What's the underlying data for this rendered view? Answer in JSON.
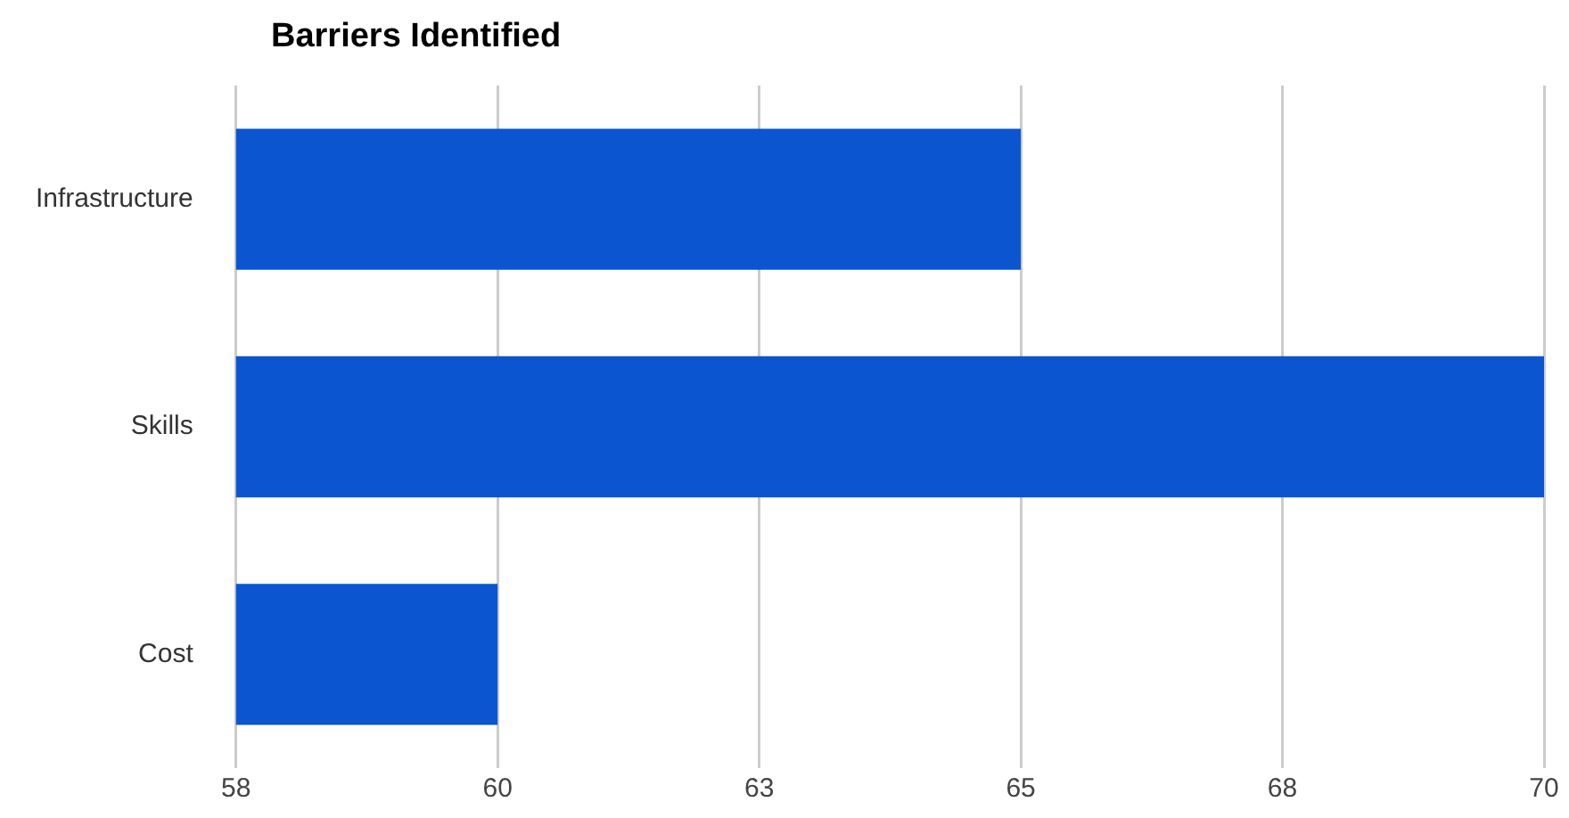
{
  "chart_data": {
    "type": "bar",
    "title": "Barriers Identified",
    "orientation": "horizontal",
    "categories": [
      "Infrastructure",
      "Skills",
      "Cost"
    ],
    "values": [
      65.2,
      70,
      60.4
    ],
    "color": "#0b55d0",
    "xlim": [
      58,
      70
    ],
    "xticks": [
      58,
      {
        "value": 60.4,
        "label": "60"
      },
      {
        "value": 62.8,
        "label": "63"
      },
      {
        "value": 65.2,
        "label": "65"
      },
      {
        "value": 67.6,
        "label": "68"
      },
      70
    ],
    "grid": "x",
    "legend": false
  }
}
